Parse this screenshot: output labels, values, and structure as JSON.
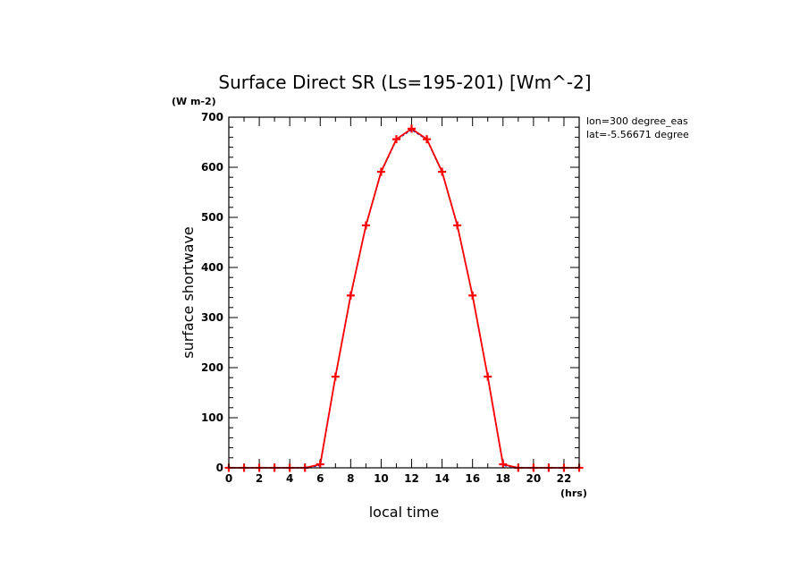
{
  "chart_data": {
    "type": "line",
    "title": "Surface Direct SR (Ls=195-201) [Wm^-2]",
    "unit_label": "(W m-2)",
    "xlabel": "local time",
    "xunit": "(hrs)",
    "ylabel": "surface shortwave",
    "annotations": [
      "lon=300 degree_eas",
      "lat=-5.56671 degree"
    ],
    "xlim": [
      0,
      23
    ],
    "ylim": [
      0,
      700
    ],
    "x_ticks": [
      "0",
      "2",
      "4",
      "6",
      "8",
      "10",
      "12",
      "14",
      "16",
      "18",
      "20",
      "22"
    ],
    "y_ticks": [
      "0",
      "100",
      "200",
      "300",
      "400",
      "500",
      "600",
      "700"
    ],
    "x": [
      0,
      1,
      2,
      3,
      4,
      5,
      6,
      7,
      8,
      9,
      10,
      11,
      12,
      13,
      14,
      15,
      16,
      17,
      18,
      19,
      20,
      21,
      22,
      23
    ],
    "series": [
      {
        "color": "#2222aa",
        "style": "dashed",
        "values": [
          0,
          0,
          0,
          0,
          0,
          0,
          5,
          182,
          343,
          483,
          590,
          655,
          675,
          655,
          590,
          483,
          343,
          182,
          5,
          0,
          0,
          0,
          0,
          0
        ]
      },
      {
        "color": "#ff0000",
        "style": "solid",
        "marker": "plus",
        "values": [
          0,
          0,
          0,
          0,
          0,
          0,
          7,
          182,
          344,
          484,
          591,
          656,
          677,
          656,
          591,
          484,
          344,
          182,
          7,
          0,
          0,
          0,
          0,
          0
        ]
      }
    ]
  }
}
